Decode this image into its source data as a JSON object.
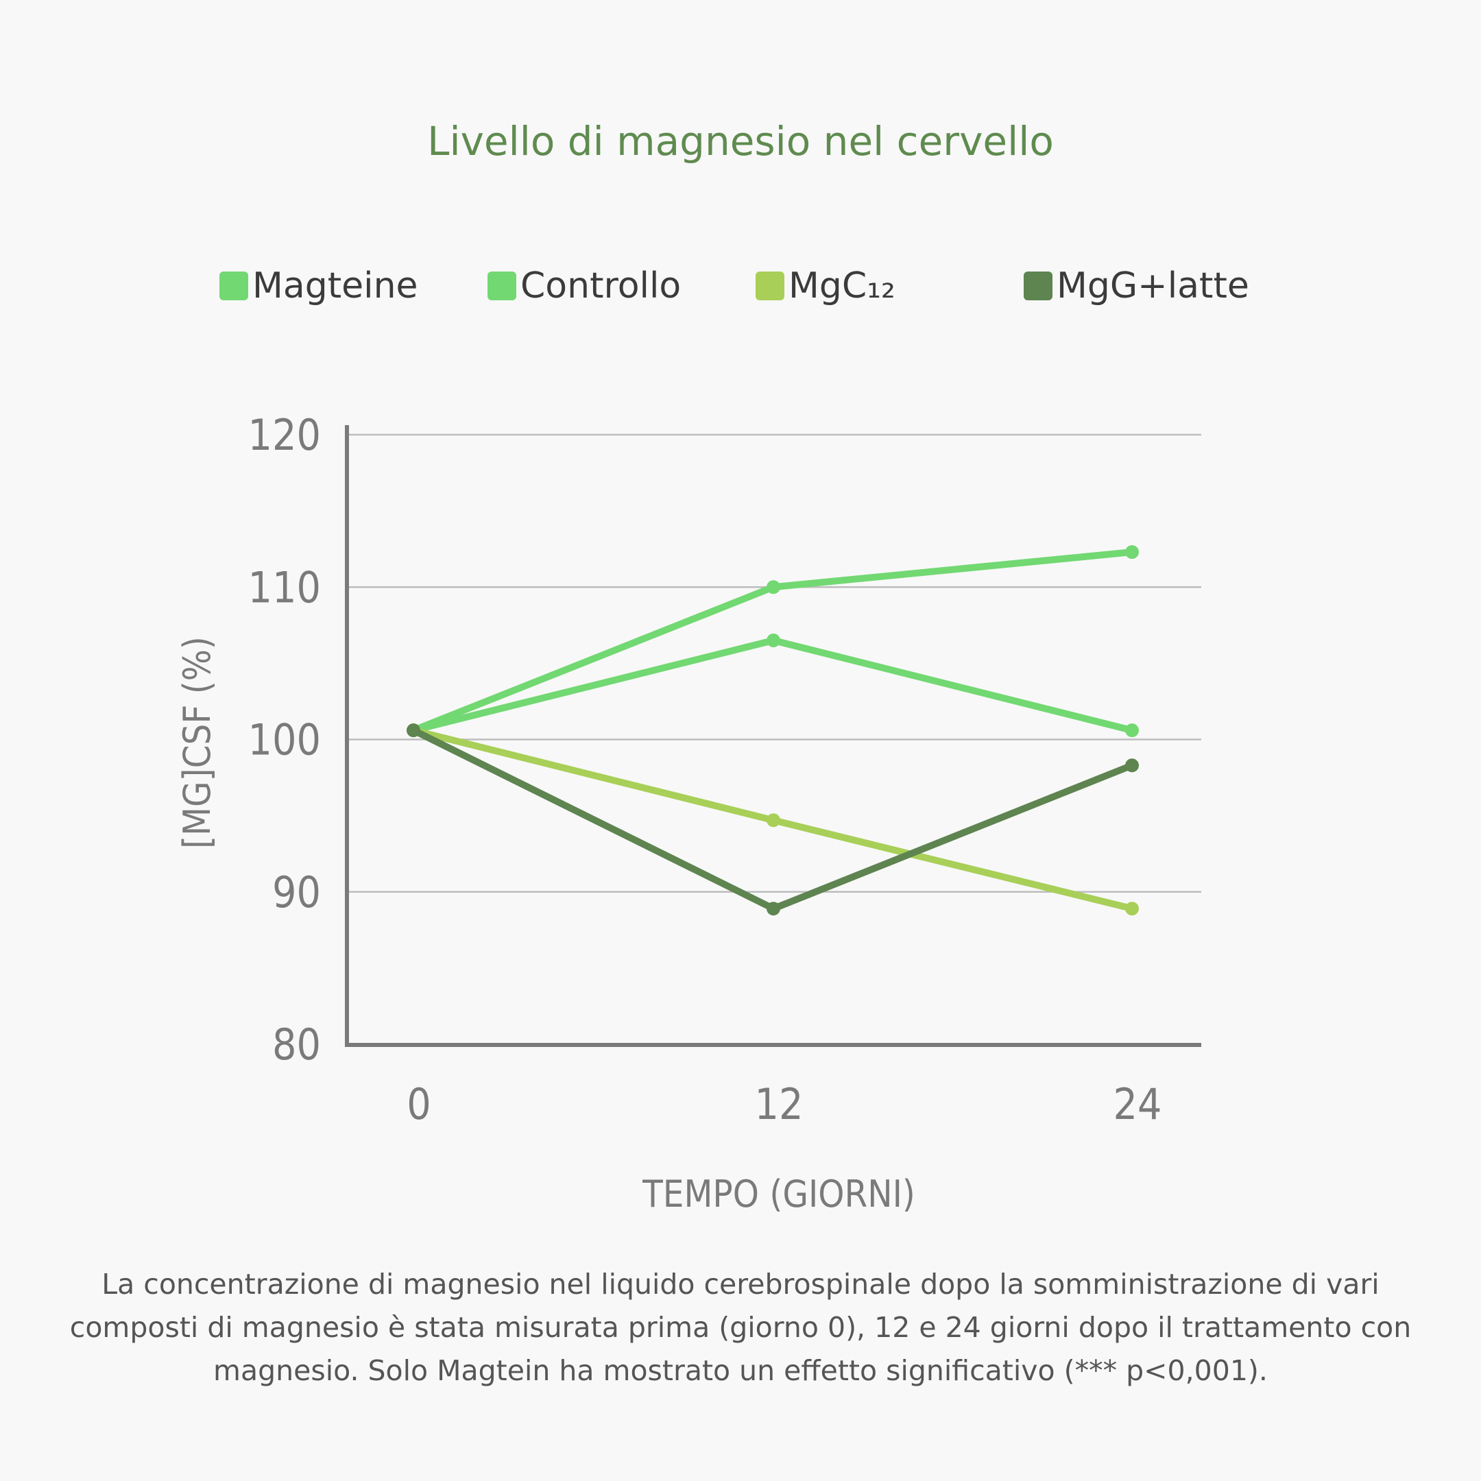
{
  "chart_data": {
    "type": "line",
    "title": "Livello di magnesio nel cervello",
    "xlabel": "TEMPO (GIORNI)",
    "ylabel": "[MG]CSF (%)",
    "x": [
      0,
      12,
      24
    ],
    "x_tick_labels": [
      "0",
      "12",
      "24"
    ],
    "y_tick_labels": [
      "80",
      "90",
      "100",
      "110",
      "120"
    ],
    "ylim": [
      80,
      120
    ],
    "grid": true,
    "legend_placement": "top",
    "series": [
      {
        "name": "Magteine",
        "color": "#72d872",
        "values": [
          100.6,
          110,
          112.3
        ]
      },
      {
        "name": "Controllo",
        "color": "#72d872",
        "values": [
          100.6,
          106.5,
          100.6
        ]
      },
      {
        "name": "MgC₁₂",
        "color": "#a8cf58",
        "values": [
          100.6,
          94.7,
          88.9
        ]
      },
      {
        "name": "MgG+latte",
        "color": "#5e8450",
        "values": [
          100.6,
          88.9,
          98.3
        ]
      }
    ],
    "caption": "La concentrazione di magnesio nel liquido cerebrospinale dopo la somministrazione di vari composti di magnesio è stata misurata prima (giorno 0), 12 e 24 giorni dopo il trattamento con magnesio. Solo Magtein ha mostrato un effetto significativo (*** p<0,001)."
  }
}
